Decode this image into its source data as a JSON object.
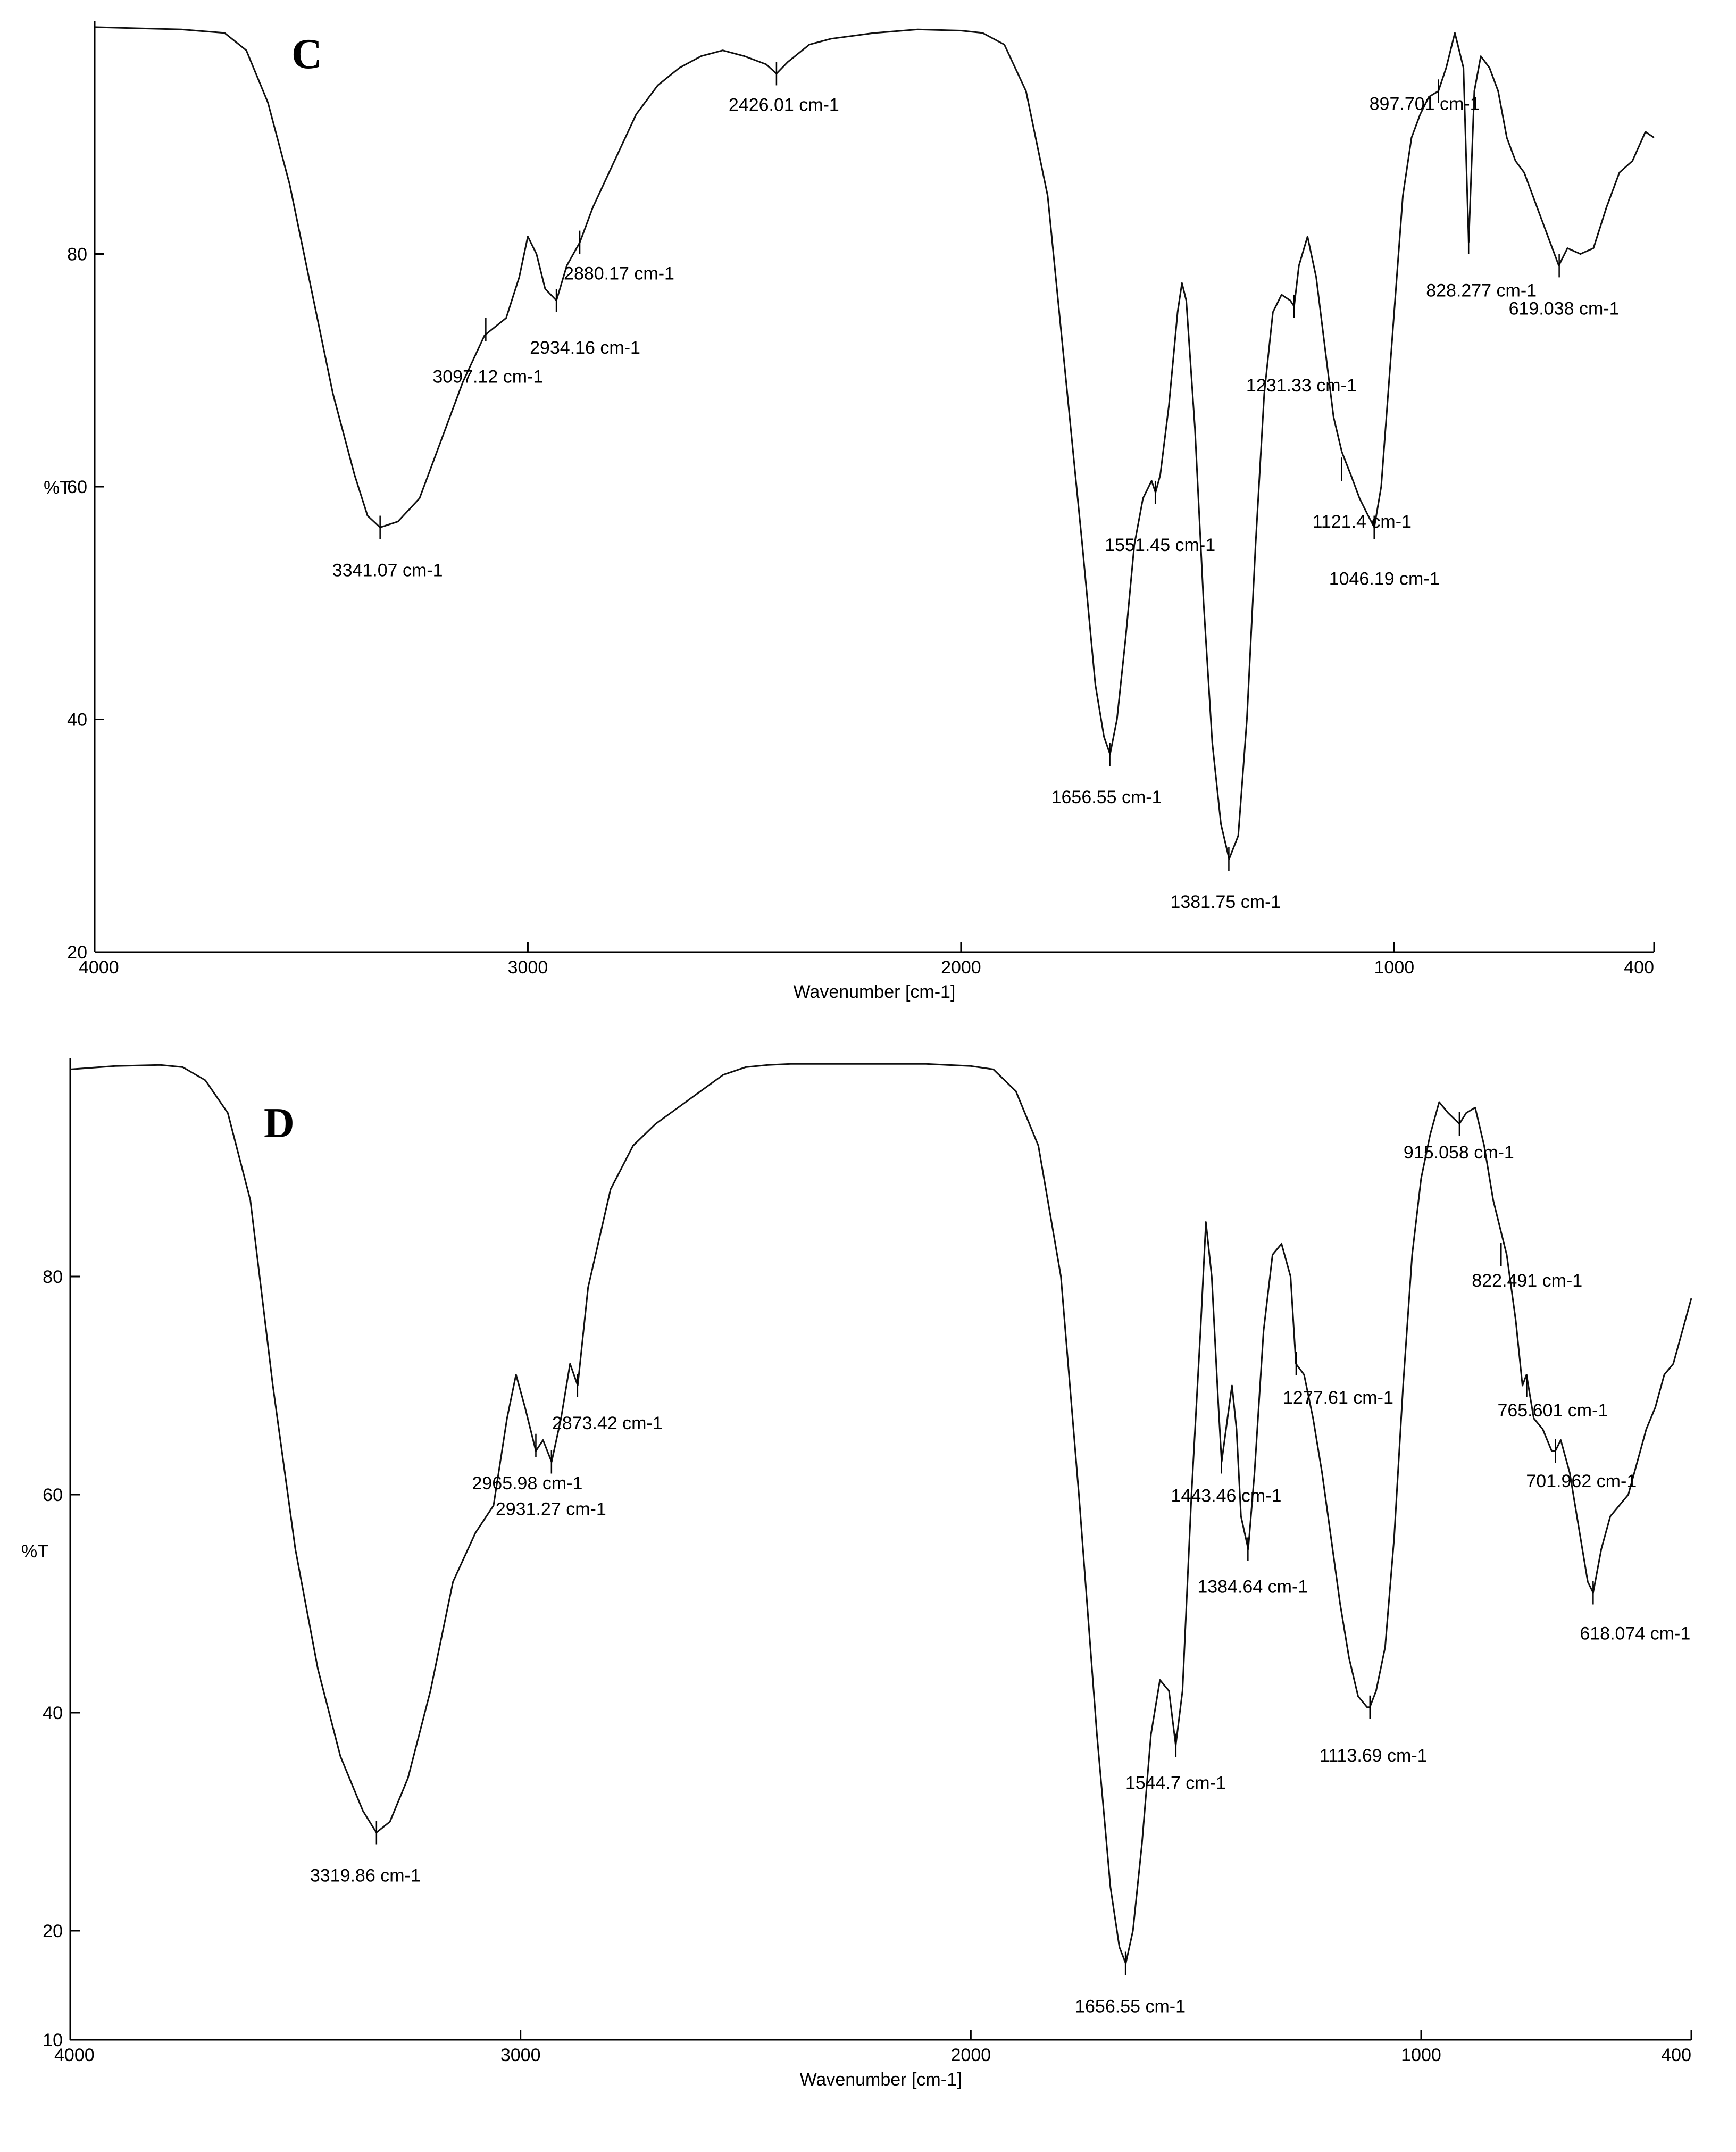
{
  "chart_data": [
    {
      "type": "line",
      "panel_label": "C",
      "xlabel": "Wavenumber [cm-1]",
      "ylabel": "%T",
      "xlim": [
        4000,
        400
      ],
      "ylim": [
        20,
        100
      ],
      "x_ticks": [
        4000,
        3000,
        2000,
        1000,
        400
      ],
      "x_tick_labels": [
        "4000",
        "3000",
        "2000",
        "1000",
        "400"
      ],
      "y_ticks": [
        20,
        40,
        60,
        80
      ],
      "y_tick_labels": [
        "20",
        "40",
        "60",
        "80"
      ],
      "series": [
        {
          "x": [
            4000,
            3900,
            3800,
            3700,
            3650,
            3600,
            3550,
            3500,
            3450,
            3400,
            3370,
            3341,
            3300,
            3250,
            3200,
            3150,
            3100,
            3050,
            3020,
            3000,
            2980,
            2960,
            2934,
            2910,
            2880,
            2850,
            2800,
            2750,
            2700,
            2650,
            2600,
            2550,
            2500,
            2450,
            2426,
            2400,
            2350,
            2300,
            2200,
            2100,
            2000,
            1950,
            1900,
            1850,
            1800,
            1760,
            1720,
            1690,
            1670,
            1656,
            1640,
            1620,
            1600,
            1580,
            1560,
            1551,
            1540,
            1520,
            1500,
            1490,
            1480,
            1460,
            1440,
            1420,
            1400,
            1381,
            1360,
            1340,
            1320,
            1300,
            1280,
            1260,
            1240,
            1231,
            1220,
            1200,
            1180,
            1160,
            1140,
            1121,
            1100,
            1080,
            1060,
            1046,
            1030,
            1000,
            980,
            960,
            940,
            920,
            898,
            880,
            860,
            840,
            828,
            815,
            800,
            780,
            760,
            740,
            720,
            700,
            680,
            660,
            640,
            620,
            600,
            570,
            540,
            510,
            480,
            450,
            420,
            400
          ],
          "y": [
            99.5,
            99.4,
            99.3,
            99.0,
            97.5,
            93,
            86,
            77,
            68,
            61,
            57.5,
            56.5,
            57,
            59,
            64,
            69,
            73,
            74.5,
            78,
            81.5,
            80,
            77,
            76,
            79,
            81,
            84,
            88,
            92,
            94.5,
            96,
            97,
            97.5,
            97,
            96.3,
            95.5,
            96.5,
            98,
            98.5,
            99,
            99.3,
            99.2,
            99,
            98,
            94,
            85,
            70,
            55,
            43,
            38.5,
            37,
            40,
            47,
            55,
            59,
            60.5,
            59.5,
            61,
            67,
            75,
            77.5,
            76,
            65,
            50,
            38,
            31,
            28,
            30,
            40,
            55,
            68,
            75,
            76.5,
            76,
            75.5,
            79,
            81.5,
            78,
            72,
            66,
            63,
            61,
            59,
            57.5,
            56.5,
            60,
            75,
            85,
            90,
            92,
            93.5,
            94,
            96,
            99,
            96,
            81,
            94,
            97,
            96,
            94,
            90,
            88,
            87,
            85,
            83,
            81,
            79,
            80.5,
            80,
            80.5,
            84,
            87,
            88,
            90.5,
            90
          ],
          "peaks": [
            {
              "x": 3341.07,
              "y": 56.5,
              "label": "3341.07 cm-1"
            },
            {
              "x": 3097.12,
              "y": 73.5,
              "label": "3097.12 cm-1"
            },
            {
              "x": 2934.16,
              "y": 76.0,
              "label": "2934.16 cm-1"
            },
            {
              "x": 2880.17,
              "y": 81.0,
              "label": "2880.17 cm-1"
            },
            {
              "x": 2426.01,
              "y": 95.5,
              "label": "2426.01 cm-1"
            },
            {
              "x": 1656.55,
              "y": 37.0,
              "label": "1656.55 cm-1"
            },
            {
              "x": 1551.45,
              "y": 59.5,
              "label": "1551.45 cm-1"
            },
            {
              "x": 1381.75,
              "y": 28.0,
              "label": "1381.75 cm-1"
            },
            {
              "x": 1231.33,
              "y": 75.5,
              "label": "1231.33 cm-1"
            },
            {
              "x": 1121.4,
              "y": 61.5,
              "label": "1121.4 cm-1"
            },
            {
              "x": 1046.19,
              "y": 56.5,
              "label": "1046.19 cm-1"
            },
            {
              "x": 897.701,
              "y": 94.0,
              "label": "897.701 cm-1"
            },
            {
              "x": 828.277,
              "y": 81.0,
              "label": "828.277 cm-1"
            },
            {
              "x": 619.038,
              "y": 79.0,
              "label": "619.038 cm-1"
            }
          ]
        }
      ]
    },
    {
      "type": "line",
      "panel_label": "D",
      "xlabel": "Wavenumber [cm-1]",
      "ylabel": "%T",
      "xlim": [
        4000,
        400
      ],
      "ylim": [
        10,
        100
      ],
      "x_ticks": [
        4000,
        3000,
        2000,
        1000,
        400
      ],
      "x_tick_labels": [
        "4000",
        "3000",
        "2000",
        "1000",
        "400"
      ],
      "y_ticks": [
        10,
        20,
        40,
        60,
        80
      ],
      "y_tick_labels": [
        "10",
        "20",
        "40",
        "60",
        "80"
      ],
      "series": [
        {
          "x": [
            4000,
            3900,
            3800,
            3750,
            3700,
            3650,
            3600,
            3550,
            3500,
            3450,
            3400,
            3350,
            3320,
            3290,
            3250,
            3200,
            3150,
            3100,
            3060,
            3030,
            3010,
            2990,
            2966,
            2950,
            2931,
            2910,
            2890,
            2873,
            2850,
            2800,
            2750,
            2700,
            2650,
            2600,
            2550,
            2500,
            2450,
            2400,
            2350,
            2300,
            2200,
            2100,
            2000,
            1950,
            1900,
            1850,
            1800,
            1760,
            1720,
            1690,
            1670,
            1656,
            1640,
            1620,
            1600,
            1580,
            1560,
            1545,
            1530,
            1510,
            1490,
            1478,
            1465,
            1450,
            1443,
            1430,
            1420,
            1410,
            1400,
            1384,
            1370,
            1350,
            1330,
            1310,
            1290,
            1278,
            1260,
            1240,
            1220,
            1200,
            1180,
            1160,
            1140,
            1120,
            1114,
            1100,
            1080,
            1060,
            1040,
            1020,
            1000,
            980,
            960,
            940,
            915,
            900,
            880,
            860,
            840,
            822,
            810,
            790,
            775,
            766,
            750,
            730,
            710,
            702,
            690,
            670,
            650,
            630,
            618,
            600,
            580,
            560,
            540,
            520,
            500,
            480,
            460,
            440,
            420,
            400
          ],
          "y": [
            99,
            99.3,
            99.4,
            99.2,
            98,
            95,
            87,
            70,
            55,
            44,
            36,
            31,
            29,
            30,
            34,
            42,
            52,
            56.5,
            59,
            67,
            71,
            68,
            64,
            65,
            63,
            67,
            72,
            70,
            79,
            88,
            92,
            94,
            95.5,
            97,
            98.5,
            99.2,
            99.4,
            99.5,
            99.5,
            99.5,
            99.5,
            99.5,
            99.3,
            99,
            97,
            92,
            80,
            60,
            38,
            24,
            18.5,
            17,
            20,
            28,
            38,
            43,
            42,
            37,
            42,
            60,
            75,
            85,
            80,
            68,
            63,
            67,
            70,
            66,
            58,
            55,
            62,
            75,
            82,
            83,
            80,
            72,
            71,
            67,
            62,
            56,
            50,
            45,
            41.5,
            40.5,
            40.5,
            42,
            46,
            56,
            70,
            82,
            89,
            93,
            96,
            95,
            94,
            95,
            95.5,
            92,
            87,
            84,
            82,
            76,
            70,
            71,
            67,
            66,
            64,
            64,
            65,
            62,
            57,
            52,
            51,
            55,
            58,
            59,
            60,
            63,
            66,
            68,
            71,
            72,
            75,
            78
          ],
          "peaks": [
            {
              "x": 3319.86,
              "y": 29.0,
              "label": "3319.86 cm-1"
            },
            {
              "x": 2965.98,
              "y": 64.5,
              "label": "2965.98 cm-1"
            },
            {
              "x": 2931.27,
              "y": 63.0,
              "label": "2931.27 cm-1"
            },
            {
              "x": 2873.42,
              "y": 70.0,
              "label": "2873.42 cm-1"
            },
            {
              "x": 1656.55,
              "y": 17.0,
              "label": "1656.55 cm-1"
            },
            {
              "x": 1544.7,
              "y": 37.0,
              "label": "1544.7 cm-1"
            },
            {
              "x": 1443.46,
              "y": 63.0,
              "label": "1443.46 cm-1"
            },
            {
              "x": 1384.64,
              "y": 55.0,
              "label": "1384.64 cm-1"
            },
            {
              "x": 1277.61,
              "y": 72.0,
              "label": "1277.61 cm-1"
            },
            {
              "x": 1113.69,
              "y": 40.5,
              "label": "1113.69 cm-1"
            },
            {
              "x": 915.058,
              "y": 94.0,
              "label": "915.058 cm-1"
            },
            {
              "x": 822.491,
              "y": 82.0,
              "label": "822.491 cm-1"
            },
            {
              "x": 765.601,
              "y": 70.0,
              "label": "765.601 cm-1"
            },
            {
              "x": 701.962,
              "y": 64.0,
              "label": "701.962 cm-1"
            },
            {
              "x": 618.074,
              "y": 51.0,
              "label": "618.074 cm-1"
            }
          ]
        }
      ]
    }
  ]
}
